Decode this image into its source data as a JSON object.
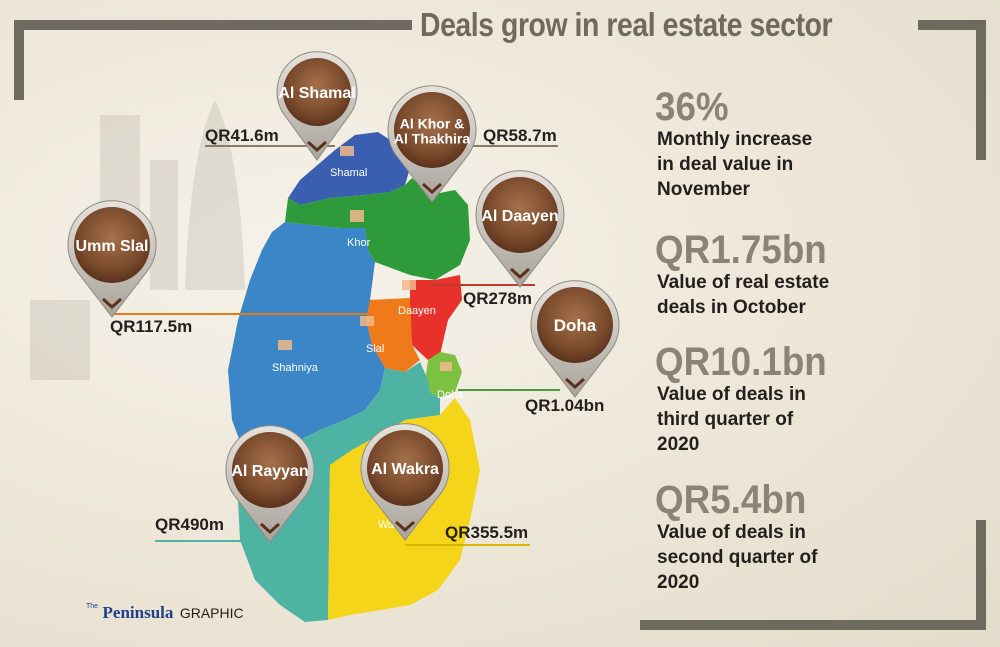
{
  "title": "Deals grow in real estate sector",
  "pins": [
    {
      "id": "al-shamal",
      "lines": [
        "Al Shamal"
      ],
      "amount": "QR41.6m"
    },
    {
      "id": "al-khor",
      "lines": [
        "Al Khor &",
        "Al Thakhira"
      ],
      "amount": "QR58.7m"
    },
    {
      "id": "al-daayen",
      "lines": [
        "Al Daayen"
      ],
      "amount": "QR278m"
    },
    {
      "id": "umm-slal",
      "lines": [
        "Umm Slal"
      ],
      "amount": "QR117.5m"
    },
    {
      "id": "doha",
      "lines": [
        "Doha"
      ],
      "amount": "QR1.04bn"
    },
    {
      "id": "al-rayyan",
      "lines": [
        "Al Rayyan"
      ],
      "amount": "QR490m"
    },
    {
      "id": "al-wakra",
      "lines": [
        "Al Wakra"
      ],
      "amount": "QR355.5m"
    }
  ],
  "region_labels": {
    "shamal": "Shamal",
    "khor": "Khor",
    "daayen": "Daayen",
    "slal": "Slal",
    "shahniya": "Shahniya",
    "doha": "Doha",
    "wakra": "Wa"
  },
  "stats": [
    {
      "value": "36%",
      "desc": [
        "Monthly increase",
        "in deal value in",
        "November"
      ]
    },
    {
      "value": "QR1.75bn",
      "desc": [
        "Value of real estate",
        "deals in October"
      ]
    },
    {
      "value": "QR10.1bn",
      "desc": [
        "Value of deals in",
        "third quarter of",
        "2020"
      ]
    },
    {
      "value": "QR5.4bn",
      "desc": [
        "Value of deals in",
        "second quarter of",
        "2020"
      ]
    }
  ],
  "credit": {
    "brand": "Peninsula",
    "brand_prefix": "The",
    "suffix": "GRAPHIC"
  },
  "colors": {
    "frame": "#6f6a5f",
    "shamal": "#3a5fb0",
    "khor": "#2f9a3a",
    "daayen": "#e8312a",
    "slal": "#ef7a1a",
    "shahniya": "#3a86c6",
    "doha": "#7cc142",
    "rayyan": "#4fb3a4",
    "wakra": "#f4d51a",
    "pin": "#8a5a3a"
  }
}
